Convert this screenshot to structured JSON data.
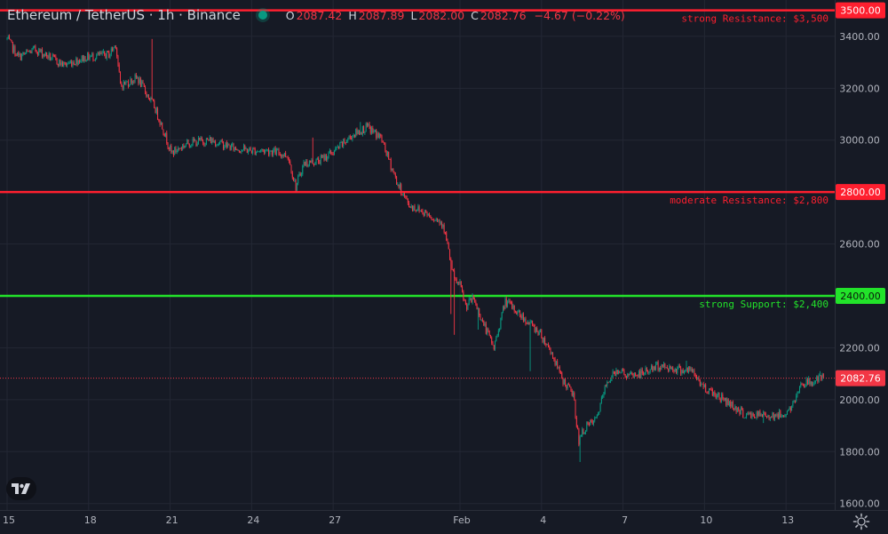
{
  "header": {
    "title": "Ethereum / TetherUS · 1h · Binance",
    "ohlc": [
      {
        "k": "O",
        "v": "2087.42"
      },
      {
        "k": "H",
        "v": "2087.89"
      },
      {
        "k": "L",
        "v": "2082.00"
      },
      {
        "k": "C",
        "v": "2082.76"
      },
      {
        "k": "",
        "v": "−4.67 (−0.22%)"
      }
    ]
  },
  "colors": {
    "background": "#161a25",
    "grid": "#232734",
    "up": "#089981",
    "down": "#f23645",
    "resistance": "#ff1f2f",
    "support": "#22e32a"
  },
  "icons": {
    "logo": "tradingview-logo-icon",
    "settings": "gear-icon"
  },
  "chart_data": {
    "type": "candlestick",
    "symbol": "Ethereum / TetherUS",
    "interval": "1h",
    "exchange": "Binance",
    "ylim": [
      1575,
      3540
    ],
    "x_ticks": [
      {
        "label": "15",
        "idx": 0
      },
      {
        "label": "18",
        "idx": 72
      },
      {
        "label": "21",
        "idx": 144
      },
      {
        "label": "24",
        "idx": 216
      },
      {
        "label": "27",
        "idx": 288
      },
      {
        "label": "Feb",
        "idx": 400
      },
      {
        "label": "4",
        "idx": 472
      },
      {
        "label": "7",
        "idx": 544
      },
      {
        "label": "10",
        "idx": 616
      },
      {
        "label": "13",
        "idx": 688
      }
    ],
    "y_ticks": [
      3400,
      3200,
      3000,
      2600,
      2200,
      2000,
      1800,
      1600
    ],
    "levels": [
      {
        "price": 3500,
        "axis_label": "3500.00",
        "text": "strong Resistance: $3,500",
        "kind": "resistance"
      },
      {
        "price": 2800,
        "axis_label": "2800.00",
        "text": "moderate Resistance: $2,800",
        "kind": "resistance"
      },
      {
        "price": 2400,
        "axis_label": "2400.00",
        "text": "strong Support: $2,400",
        "kind": "support"
      }
    ],
    "last_price": {
      "price": 2082.76,
      "label": "2082.76"
    },
    "n_bars": 722,
    "path": [
      [
        0,
        3390
      ],
      [
        10,
        3320
      ],
      [
        25,
        3350
      ],
      [
        50,
        3290
      ],
      [
        70,
        3320
      ],
      [
        90,
        3330
      ],
      [
        96,
        3370
      ],
      [
        100,
        3210
      ],
      [
        115,
        3240
      ],
      [
        130,
        3130
      ],
      [
        138,
        3040
      ],
      [
        145,
        2950
      ],
      [
        160,
        2990
      ],
      [
        180,
        3000
      ],
      [
        200,
        2970
      ],
      [
        215,
        2960
      ],
      [
        232,
        2960
      ],
      [
        248,
        2940
      ],
      [
        255,
        2820
      ],
      [
        262,
        2910
      ],
      [
        275,
        2920
      ],
      [
        290,
        2960
      ],
      [
        305,
        3020
      ],
      [
        318,
        3050
      ],
      [
        330,
        3010
      ],
      [
        345,
        2830
      ],
      [
        355,
        2750
      ],
      [
        370,
        2720
      ],
      [
        385,
        2680
      ],
      [
        395,
        2460
      ],
      [
        400,
        2440
      ],
      [
        405,
        2360
      ],
      [
        412,
        2390
      ],
      [
        420,
        2300
      ],
      [
        430,
        2200
      ],
      [
        440,
        2380
      ],
      [
        455,
        2320
      ],
      [
        470,
        2260
      ],
      [
        480,
        2190
      ],
      [
        490,
        2080
      ],
      [
        500,
        2020
      ],
      [
        505,
        1840
      ],
      [
        510,
        1890
      ],
      [
        520,
        1920
      ],
      [
        530,
        2070
      ],
      [
        540,
        2120
      ],
      [
        548,
        2090
      ],
      [
        560,
        2100
      ],
      [
        575,
        2130
      ],
      [
        590,
        2120
      ],
      [
        605,
        2110
      ],
      [
        615,
        2050
      ],
      [
        630,
        2010
      ],
      [
        640,
        1980
      ],
      [
        652,
        1940
      ],
      [
        665,
        1940
      ],
      [
        675,
        1940
      ],
      [
        685,
        1940
      ],
      [
        695,
        1980
      ],
      [
        700,
        2060
      ],
      [
        712,
        2070
      ],
      [
        721,
        2083
      ]
    ],
    "spikes": [
      [
        128,
        3390
      ],
      [
        270,
        3010
      ],
      [
        312,
        3070
      ],
      [
        382,
        2670
      ],
      [
        392,
        2330
      ],
      [
        395,
        2250
      ],
      [
        416,
        2270
      ],
      [
        431,
        2200
      ],
      [
        462,
        2110
      ],
      [
        506,
        1760
      ],
      [
        562,
        2110
      ],
      [
        600,
        2150
      ],
      [
        668,
        1910
      ],
      [
        718,
        2110
      ]
    ]
  }
}
